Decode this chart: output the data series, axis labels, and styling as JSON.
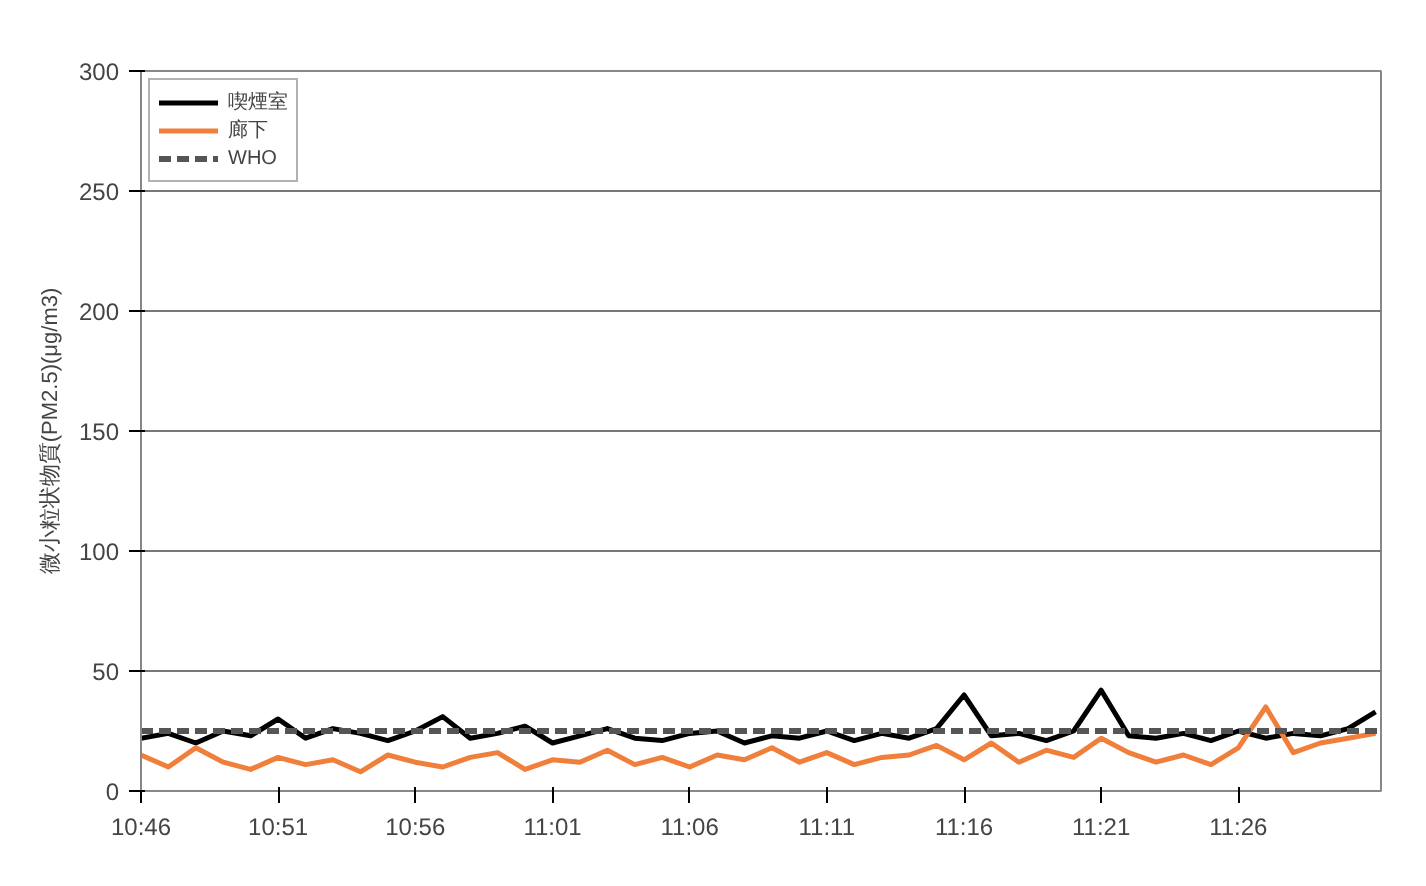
{
  "chart_data": {
    "type": "line",
    "ylabel": "微小粒状物質(PM2.5)(μg/m3)",
    "x": [
      10.7667,
      10.7833,
      10.8,
      10.8167,
      10.8333,
      10.85,
      10.8667,
      10.8833,
      10.9,
      10.9167,
      10.9333,
      10.95,
      10.9667,
      10.9833,
      11.0,
      11.0167,
      11.0333,
      11.05,
      11.0667,
      11.0833,
      11.1,
      11.1167,
      11.1333,
      11.15,
      11.1667,
      11.1833,
      11.2,
      11.2167,
      11.2333,
      11.25,
      11.2667,
      11.2833,
      11.3,
      11.3167,
      11.3333,
      11.35,
      11.3667,
      11.3833,
      11.4,
      11.4167,
      11.4333,
      11.45,
      11.4667,
      11.4833,
      11.5,
      11.5167
    ],
    "series": [
      {
        "name": "喫煙室",
        "color": "#000000",
        "values": [
          22,
          24,
          20,
          25,
          23,
          30,
          22,
          26,
          24,
          21,
          25,
          31,
          22,
          24,
          27,
          20,
          23,
          26,
          22,
          21,
          24,
          25,
          20,
          23,
          22,
          25,
          21,
          24,
          22,
          26,
          40,
          23,
          24,
          21,
          25,
          42,
          23,
          22,
          24,
          21,
          25,
          22,
          24,
          23,
          26,
          33
        ]
      },
      {
        "name": "廊下",
        "color": "#f07f3c",
        "values": [
          15,
          10,
          18,
          12,
          9,
          14,
          11,
          13,
          8,
          15,
          12,
          10,
          14,
          16,
          9,
          13,
          12,
          17,
          11,
          14,
          10,
          15,
          13,
          18,
          12,
          16,
          11,
          14,
          15,
          19,
          13,
          20,
          12,
          17,
          14,
          22,
          16,
          12,
          15,
          11,
          18,
          35,
          16,
          20,
          22,
          24
        ]
      },
      {
        "name": "WHO",
        "color": "#555555",
        "line_style": "dashed",
        "x": [
          10.7667,
          11.52
        ],
        "values": [
          25,
          25
        ]
      }
    ],
    "xlim": [
      10.7667,
      11.52
    ],
    "xticks": [
      {
        "value": 10.7667,
        "label": "10:46"
      },
      {
        "value": 10.85,
        "label": "10:51"
      },
      {
        "value": 10.9333,
        "label": "10:56"
      },
      {
        "value": 11.0167,
        "label": "11:01"
      },
      {
        "value": 11.1,
        "label": "11:06"
      },
      {
        "value": 11.1833,
        "label": "11:11"
      },
      {
        "value": 11.2667,
        "label": "11:16"
      },
      {
        "value": 11.35,
        "label": "11:21"
      },
      {
        "value": 11.4333,
        "label": "11:26"
      }
    ],
    "ylim": [
      0,
      300
    ],
    "yticks": [
      0,
      50,
      100,
      150,
      200,
      250,
      300
    ],
    "grid": "y",
    "legend": "top left",
    "line_style": "solid"
  }
}
